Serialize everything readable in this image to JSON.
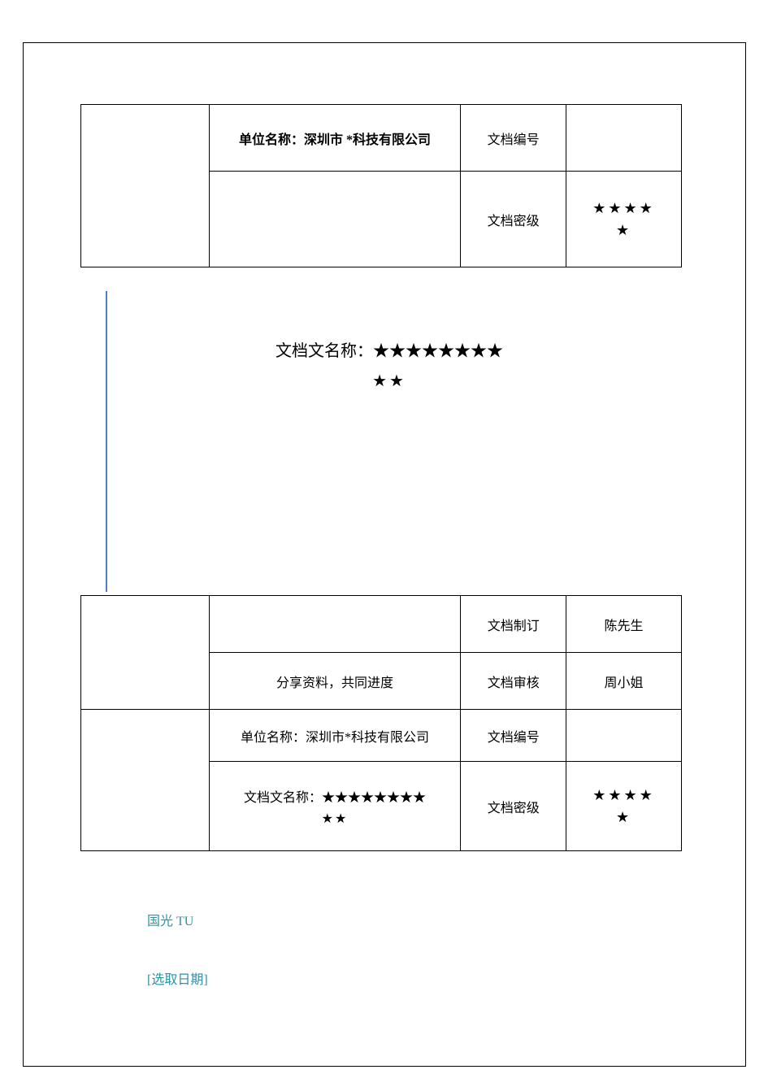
{
  "colors": {
    "border": "#000000",
    "text": "#000000",
    "accent_line": "#4a7fc5",
    "footer_text": "#2a93a6",
    "background": "#ffffff"
  },
  "top_table": {
    "org_label": "单位名称：深圳市 *科技有限公司",
    "doc_id_label": "文档编号",
    "doc_id_value": "",
    "secrecy_label": "文档密级",
    "secrecy_stars_line1": "★★★★",
    "secrecy_stars_line2": "★"
  },
  "doc_title": {
    "line1": "文档文名称：★★★★★★★★",
    "line2": "★★"
  },
  "bottom_table": {
    "row1_left": "",
    "row1_mid": "",
    "row1_label": "文档制订",
    "row1_value": "陈先生",
    "row2_mid": "分享资料，共同进度",
    "row2_label": "文档审核",
    "row2_value": "周小姐",
    "row3_mid": "单位名称：深圳市*科技有限公司",
    "row3_label": "文档编号",
    "row3_value": "",
    "row4_mid_line1": "文档文名称：★★★★★★★★",
    "row4_mid_line2": "★★",
    "row4_label": "文档密级",
    "row4_stars_line1": "★★★★",
    "row4_stars_line2": "★"
  },
  "footer": {
    "line1": "国光 TU",
    "line2": "[选取日期]"
  }
}
